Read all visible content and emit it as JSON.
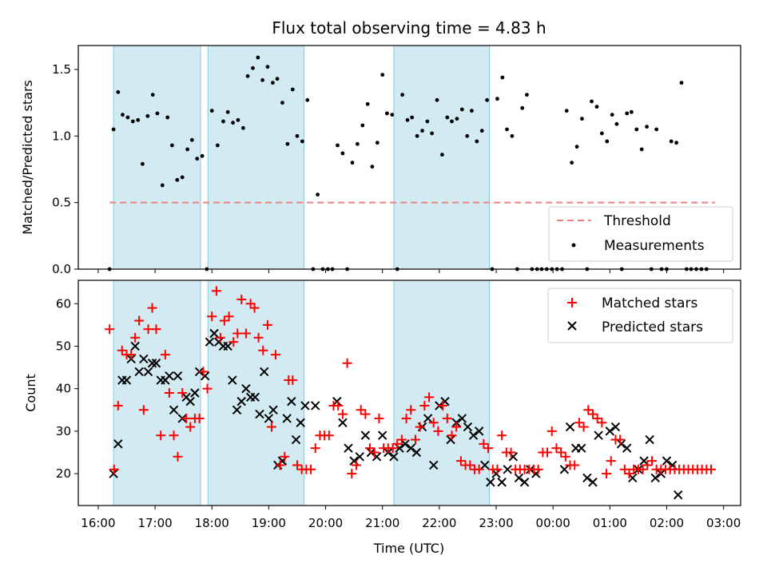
{
  "chart_data": [
    {
      "type": "scatter",
      "panel": "top",
      "title": "Flux total observing time = 4.83 h",
      "xlabel": "",
      "ylabel": "Matched/Predicted stars",
      "ylim": [
        0,
        1.68
      ],
      "xlim": [
        15.65,
        27.3
      ],
      "yticks": [
        0.0,
        0.5,
        1.0,
        1.5
      ],
      "ytick_labels": [
        "0.0",
        "0.5",
        "1.0",
        "1.5"
      ],
      "threshold": {
        "name": "Threshold",
        "value": 0.5,
        "x": [
          16.2,
          26.85
        ],
        "color": "#f08080"
      },
      "measurement_color": "#000000",
      "legend": [
        "Threshold",
        "Measurements"
      ],
      "measurements_x": [
        16.2,
        16.27,
        16.35,
        16.43,
        16.52,
        16.61,
        16.7,
        16.78,
        16.87,
        16.96,
        17.04,
        17.13,
        17.22,
        17.3,
        17.39,
        17.48,
        17.57,
        17.65,
        17.74,
        17.83,
        17.91,
        18.0,
        18.1,
        18.2,
        18.28,
        18.37,
        18.46,
        18.55,
        18.63,
        18.72,
        18.81,
        18.89,
        18.98,
        19.07,
        19.15,
        19.24,
        19.33,
        19.42,
        19.5,
        19.59,
        19.68,
        19.78,
        19.86,
        19.95,
        20.04,
        20.12,
        20.21,
        20.3,
        20.38,
        20.47,
        20.56,
        20.65,
        20.74,
        20.82,
        20.91,
        21.0,
        21.08,
        21.17,
        21.26,
        21.35,
        21.44,
        21.52,
        21.61,
        21.7,
        21.79,
        21.87,
        21.96,
        22.05,
        22.14,
        22.22,
        22.31,
        22.4,
        22.49,
        22.57,
        22.66,
        22.75,
        22.84,
        22.93,
        23.02,
        23.11,
        23.19,
        23.28,
        23.37,
        23.46,
        23.54,
        23.63,
        23.72,
        23.8,
        23.89,
        23.98,
        24.07,
        24.16,
        24.24,
        24.33,
        24.42,
        24.51,
        24.6,
        24.68,
        24.77,
        24.86,
        24.95,
        25.04,
        25.12,
        25.21,
        25.3,
        25.38,
        25.47,
        25.56,
        25.65,
        25.73,
        25.82,
        25.91,
        26.0,
        26.08,
        26.17,
        26.26,
        26.35,
        26.43,
        26.52,
        26.61,
        26.7
      ],
      "measurements_y": [
        0.0,
        1.05,
        1.33,
        1.16,
        1.14,
        1.11,
        1.12,
        0.79,
        1.15,
        1.31,
        1.17,
        0.63,
        1.14,
        0.93,
        0.67,
        0.69,
        0.9,
        0.97,
        0.83,
        0.85,
        0.0,
        1.19,
        0.93,
        1.11,
        1.18,
        1.1,
        1.12,
        1.06,
        1.45,
        1.51,
        1.59,
        1.42,
        1.52,
        1.4,
        1.43,
        1.25,
        0.94,
        1.35,
        1.0,
        0.96,
        1.27,
        0.0,
        0.56,
        0.0,
        0.0,
        0.0,
        0.93,
        0.87,
        0.0,
        0.8,
        0.94,
        1.08,
        1.24,
        0.77,
        0.95,
        1.46,
        1.17,
        1.16,
        0.0,
        1.31,
        1.12,
        1.14,
        1.0,
        1.04,
        1.11,
        1.02,
        1.27,
        0.86,
        1.14,
        1.11,
        1.13,
        1.2,
        1.0,
        1.19,
        0.96,
        1.04,
        1.27,
        0.0,
        1.28,
        1.44,
        1.05,
        1.0,
        0.0,
        1.21,
        1.31,
        0.0,
        0.0,
        0.0,
        0.0,
        0.0,
        0.0,
        0.0,
        1.19,
        0.8,
        0.92,
        1.13,
        0.0,
        1.26,
        1.22,
        1.02,
        0.96,
        1.16,
        1.09,
        0.0,
        1.17,
        1.18,
        1.05,
        0.9,
        1.07,
        0.0,
        1.05,
        0.0,
        0.0,
        0.96,
        0.95,
        1.4,
        0.0,
        0.0,
        0.0,
        0.0,
        0.0
      ]
    },
    {
      "type": "scatter",
      "panel": "bottom",
      "title": "",
      "xlabel": "Time (UTC)",
      "ylabel": "Count",
      "ylim": [
        12.5,
        65.5
      ],
      "xlim": [
        15.65,
        27.3
      ],
      "yticks": [
        20,
        30,
        40,
        50,
        60
      ],
      "ytick_labels": [
        "20",
        "30",
        "40",
        "50",
        "60"
      ],
      "xticks": [
        16,
        17,
        18,
        19,
        20,
        21,
        22,
        23,
        24,
        25,
        26,
        27
      ],
      "xtick_labels": [
        "16:00",
        "17:00",
        "18:00",
        "19:00",
        "20:00",
        "21:00",
        "22:00",
        "23:00",
        "00:00",
        "01:00",
        "02:00",
        "03:00"
      ],
      "shaded_intervals": [
        [
          16.27,
          17.8
        ],
        [
          17.93,
          19.62
        ],
        [
          21.2,
          22.88
        ]
      ],
      "shade_color": "#add8e6",
      "legend": [
        "Matched stars",
        "Predicted stars"
      ],
      "series": [
        {
          "name": "Matched stars",
          "marker": "+",
          "color": "#ff0000",
          "x": [
            16.2,
            16.28,
            16.35,
            16.42,
            16.5,
            16.58,
            16.65,
            16.72,
            16.8,
            16.88,
            16.95,
            17.02,
            17.1,
            17.18,
            17.25,
            17.33,
            17.4,
            17.48,
            17.55,
            17.62,
            17.7,
            17.78,
            17.85,
            17.92,
            18.0,
            18.08,
            18.15,
            18.22,
            18.3,
            18.38,
            18.45,
            18.52,
            18.6,
            18.68,
            18.75,
            18.82,
            18.9,
            18.98,
            19.05,
            19.12,
            19.2,
            19.28,
            19.35,
            19.42,
            19.5,
            19.58,
            19.66,
            19.74,
            19.82,
            19.9,
            19.98,
            20.06,
            20.14,
            20.22,
            20.3,
            20.38,
            20.46,
            20.54,
            20.62,
            20.7,
            20.78,
            20.86,
            20.94,
            21.02,
            21.1,
            21.18,
            21.26,
            21.34,
            21.42,
            21.5,
            21.58,
            21.66,
            21.74,
            21.82,
            21.9,
            21.98,
            22.06,
            22.14,
            22.22,
            22.3,
            22.38,
            22.46,
            22.54,
            22.62,
            22.7,
            22.78,
            22.86,
            22.94,
            23.02,
            23.1,
            23.18,
            23.26,
            23.34,
            23.42,
            23.5,
            23.58,
            23.66,
            23.74,
            23.82,
            23.9,
            23.98,
            24.06,
            24.14,
            24.22,
            24.3,
            24.38,
            24.46,
            24.54,
            24.62,
            24.7,
            24.78,
            24.86,
            24.94,
            25.02,
            25.1,
            25.18,
            25.26,
            25.34,
            25.42,
            25.5,
            25.58,
            25.66,
            25.74,
            25.82,
            25.9,
            25.98,
            26.06,
            26.14,
            26.22,
            26.3,
            26.38,
            26.46,
            26.54,
            26.62,
            26.7,
            26.78
          ],
          "y": [
            54,
            21,
            36,
            49,
            48,
            48,
            52,
            56,
            35,
            54,
            59,
            54,
            29,
            48,
            39,
            29,
            24,
            39,
            33,
            31,
            33,
            33,
            44,
            40,
            57,
            63,
            52,
            56,
            57,
            51,
            53,
            61,
            53,
            60,
            59,
            52,
            49,
            55,
            31,
            48,
            22,
            24,
            42,
            42,
            22,
            21,
            21,
            21,
            26,
            29,
            29,
            29,
            36,
            36,
            34,
            46,
            20,
            22,
            35,
            34,
            26,
            25,
            33,
            26,
            26,
            26,
            27,
            28,
            33,
            35,
            28,
            31,
            36,
            38,
            32,
            30,
            36,
            33,
            29,
            31,
            23,
            22,
            22,
            21,
            21,
            27,
            26,
            21,
            21,
            29,
            25,
            25,
            21,
            21,
            21,
            21,
            21,
            21,
            25,
            25,
            30,
            26,
            25,
            24,
            22,
            22,
            32,
            31,
            35,
            34,
            33,
            32,
            20,
            23,
            28,
            28,
            21,
            20,
            21,
            21,
            21,
            22,
            23,
            21,
            21,
            21,
            21,
            21,
            21,
            21,
            21,
            21,
            21,
            21,
            21,
            21
          ]
        },
        {
          "name": "Predicted stars",
          "marker": "x",
          "color": "#000000",
          "x": [
            16.27,
            16.35,
            16.42,
            16.5,
            16.58,
            16.65,
            16.72,
            16.8,
            16.88,
            16.95,
            17.02,
            17.1,
            17.18,
            17.25,
            17.33,
            17.4,
            17.48,
            17.55,
            17.62,
            17.7,
            17.78,
            17.88,
            17.96,
            18.04,
            18.12,
            18.2,
            18.28,
            18.36,
            18.44,
            18.52,
            18.6,
            18.68,
            18.76,
            18.84,
            18.92,
            19.0,
            19.08,
            19.16,
            19.24,
            19.32,
            19.4,
            19.48,
            19.56,
            19.64,
            19.82,
            20.2,
            20.3,
            20.4,
            20.5,
            20.6,
            20.7,
            20.8,
            20.9,
            21.0,
            21.1,
            21.2,
            21.3,
            21.4,
            21.5,
            21.6,
            21.7,
            21.8,
            21.9,
            22.0,
            22.1,
            22.2,
            22.3,
            22.4,
            22.5,
            22.6,
            22.7,
            22.8,
            22.9,
            23.0,
            23.1,
            23.2,
            23.3,
            23.4,
            23.5,
            23.6,
            23.7,
            24.2,
            24.3,
            24.4,
            24.5,
            24.6,
            24.7,
            24.8,
            25.0,
            25.1,
            25.2,
            25.3,
            25.4,
            25.5,
            25.6,
            25.7,
            25.8,
            25.9,
            26.0,
            26.1,
            26.2
          ],
          "y": [
            20,
            27,
            42,
            42,
            47,
            50,
            44,
            47,
            44,
            46,
            46,
            42,
            42,
            43,
            35,
            43,
            33,
            38,
            37,
            39,
            44,
            43,
            51,
            53,
            51,
            50,
            50,
            42,
            35,
            37,
            40,
            38,
            38,
            34,
            44,
            33,
            35,
            22,
            23,
            33,
            37,
            28,
            32,
            36,
            36,
            37,
            32,
            26,
            23,
            24,
            29,
            25,
            24,
            29,
            25,
            24,
            26,
            27,
            26,
            25,
            31,
            33,
            22,
            36,
            37,
            28,
            32,
            33,
            31,
            29,
            30,
            22,
            18,
            20,
            18,
            21,
            24,
            19,
            18,
            21,
            20,
            21,
            31,
            26,
            26,
            19,
            18,
            29,
            30,
            31,
            27,
            26,
            19,
            21,
            23,
            28,
            19,
            20,
            23,
            22,
            15
          ]
        }
      ]
    }
  ]
}
